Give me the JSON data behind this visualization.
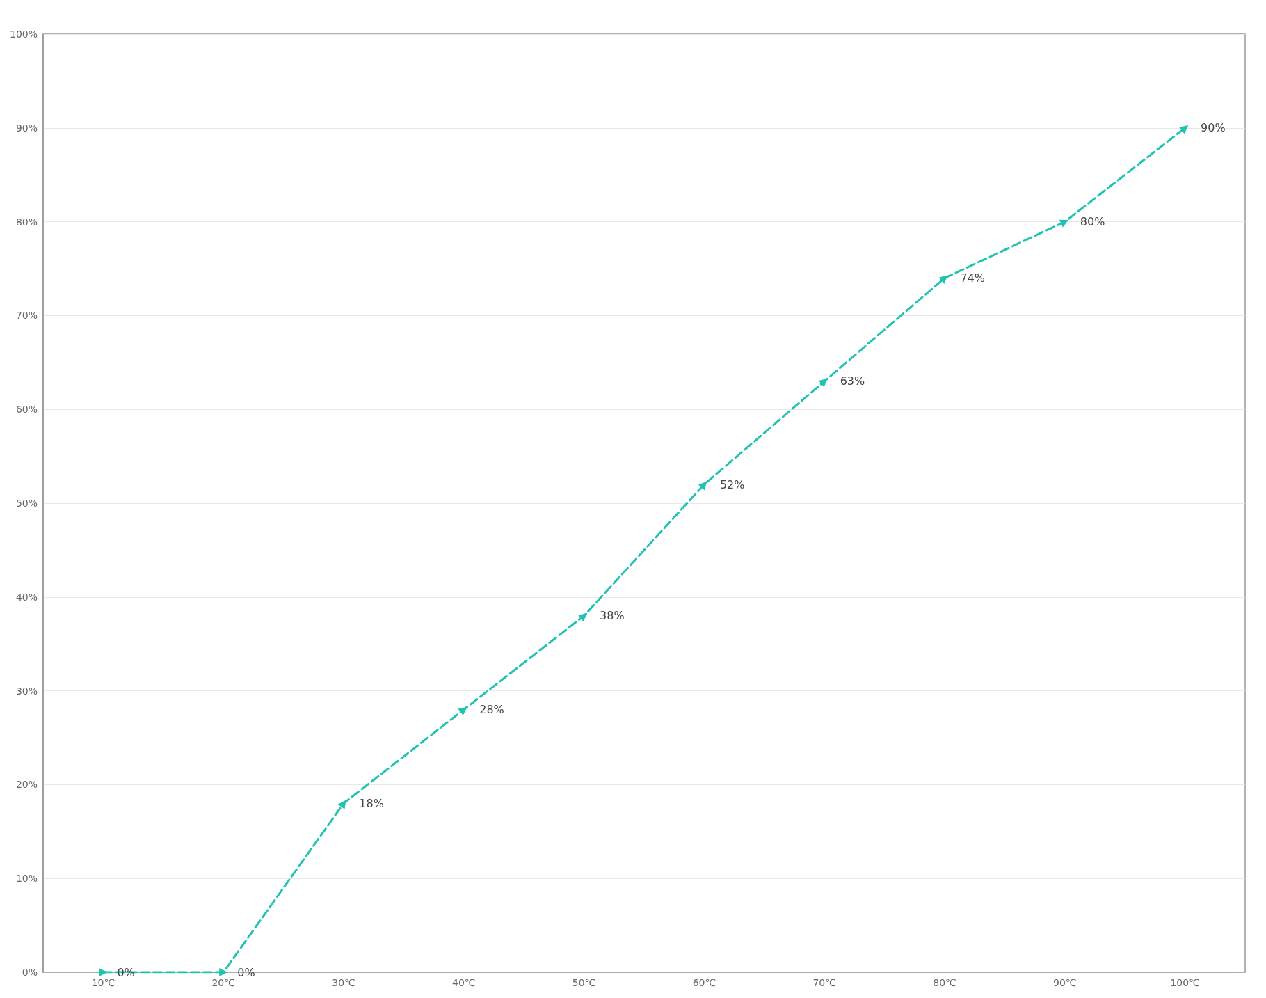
{
  "chart_data": {
    "type": "line",
    "categories": [
      "10℃",
      "20℃",
      "30℃",
      "40℃",
      "50℃",
      "60℃",
      "70℃",
      "80℃",
      "90℃",
      "100℃"
    ],
    "series": [
      {
        "color": "#1ec3b1",
        "values": [
          0,
          0,
          18,
          28,
          38,
          52,
          63,
          74,
          80,
          90
        ]
      }
    ],
    "ylim": [
      0,
      100
    ],
    "yticks": [
      {
        "value": 0,
        "label": "0%"
      },
      {
        "value": 10,
        "label": "10%"
      },
      {
        "value": 20,
        "label": "20%"
      },
      {
        "value": 30,
        "label": "30%"
      },
      {
        "value": 40,
        "label": "40%"
      },
      {
        "value": 50,
        "label": "50%"
      },
      {
        "value": 60,
        "label": "60%"
      },
      {
        "value": 70,
        "label": "70%"
      },
      {
        "value": 80,
        "label": "80%"
      },
      {
        "value": 90,
        "label": "90%"
      },
      {
        "value": 100,
        "label": "100%"
      }
    ],
    "value_labels": [
      "0%",
      "0%",
      "18%",
      "28%",
      "38%",
      "52%",
      "63%",
      "74%",
      "80%",
      "90%"
    ],
    "grid": "y",
    "marker": "triangle",
    "line_style": "dashed"
  }
}
